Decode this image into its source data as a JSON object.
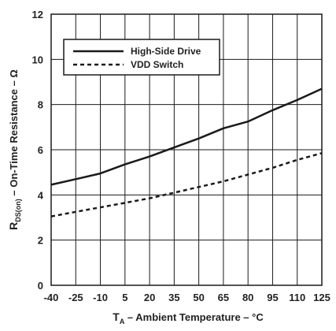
{
  "chart_data": {
    "type": "line",
    "title": "",
    "xlabel": {
      "main": "T",
      "sub": "A",
      "rest": " – Ambient Temperature – °C"
    },
    "ylabel": {
      "pre": "R",
      "sub": "DS(on)",
      "post": " – On-Time Resistance – Ω"
    },
    "x_ticks": [
      "-40",
      "-25",
      "-10",
      "5",
      "20",
      "35",
      "50",
      "65",
      "80",
      "95",
      "110",
      "125"
    ],
    "y_ticks": [
      "0",
      "2",
      "4",
      "6",
      "8",
      "10",
      "12"
    ],
    "xlim": [
      -40,
      125
    ],
    "ylim": [
      0,
      12
    ],
    "grid": true,
    "legend_position": "top-left",
    "x": [
      -40,
      -25,
      -10,
      5,
      20,
      35,
      50,
      65,
      80,
      95,
      110,
      125
    ],
    "series": [
      {
        "name": "High-Side Drive",
        "style": "solid",
        "values": [
          4.45,
          4.7,
          4.95,
          5.35,
          5.7,
          6.1,
          6.5,
          6.95,
          7.25,
          7.75,
          8.2,
          8.7
        ]
      },
      {
        "name": "VDD Switch",
        "style": "dashed",
        "values": [
          3.05,
          3.25,
          3.45,
          3.65,
          3.85,
          4.1,
          4.35,
          4.6,
          4.9,
          5.2,
          5.55,
          5.85
        ]
      }
    ],
    "colors": {
      "line": "#1a1a1a",
      "grid": "#1a1a1a",
      "background": "#ffffff"
    }
  }
}
